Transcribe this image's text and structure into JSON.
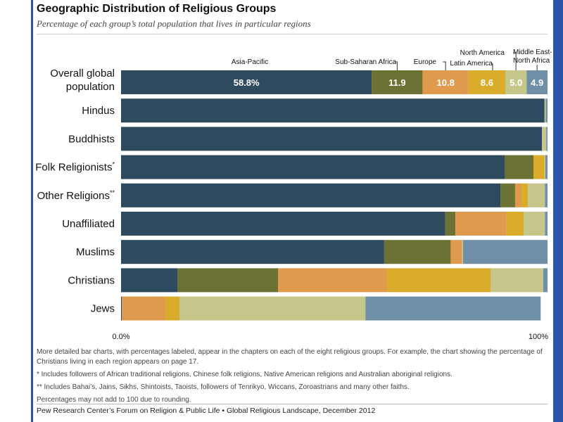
{
  "header": {
    "title": "Geographic Distribution of Religious Groups",
    "subtitle": "Percentage of each group’s total population that lives in particular regions"
  },
  "chart_data": {
    "type": "bar",
    "orientation": "horizontal",
    "stacked": true,
    "categories": [
      "Overall global population",
      "Hindus",
      "Buddhists",
      "Folk Religionists*",
      "Other Religions**",
      "Unaffiliated",
      "Muslims",
      "Christians",
      "Jews"
    ],
    "series": [
      {
        "name": "Asia-Pacific",
        "color": "#2e4a5e",
        "values": [
          58.8,
          99.3,
          98.7,
          90.0,
          89.0,
          76.0,
          61.7,
          13.2,
          0.2
        ]
      },
      {
        "name": "Sub-Saharan Africa",
        "color": "#6b7233",
        "values": [
          11.9,
          0.0,
          0.0,
          6.7,
          3.4,
          2.4,
          15.6,
          23.6,
          0.0
        ]
      },
      {
        "name": "Europe",
        "color": "#e09a4e",
        "values": [
          10.8,
          0.0,
          0.0,
          0.0,
          1.5,
          12.0,
          2.7,
          25.5,
          10.2
        ]
      },
      {
        "name": "Latin America",
        "color": "#d9ac2c",
        "values": [
          8.6,
          0.0,
          0.0,
          2.6,
          1.5,
          4.0,
          0.0,
          24.4,
          3.3
        ]
      },
      {
        "name": "North America",
        "color": "#c4c68a",
        "values": [
          5.0,
          0.3,
          1.0,
          0.2,
          4.0,
          5.0,
          0.2,
          12.3,
          43.6
        ]
      },
      {
        "name": "Middle East-North Africa",
        "color": "#6f8fa6",
        "values": [
          4.9,
          0.4,
          0.3,
          0.5,
          0.6,
          0.6,
          19.8,
          1.0,
          41.1
        ]
      }
    ],
    "top_labels": {
      "asia_pacific": "Asia-Pacific",
      "ssa": "Sub-Saharan Africa",
      "europe": "Europe",
      "latin_america": "Latin America",
      "north_america": "North America",
      "mena_line1": "Middle East-",
      "mena_line2": "North Africa"
    },
    "data_labels": [
      "58.8%",
      "11.9",
      "10.8",
      "8.6",
      "5.0",
      "4.9"
    ],
    "xlim": [
      0,
      100
    ],
    "x_ticks": [
      "0.0%",
      "100%"
    ],
    "grid": false,
    "legend": "none"
  },
  "notes": {
    "line1": "More detailed bar charts, with percentages labeled, appear in the chapters on each of the eight religious groups. For example, the chart showing the percentage of Christians living in each region appears on page 17.",
    "line2": "* Includes followers of African traditional religions, Chinese folk religions, Native American religions and Australian aboriginal religions.",
    "line3": "** Includes Bahai’s, Jains, Sikhs, Shintoists, Taoists, followers of Tenrikyo, Wiccans, Zoroastrians and many other faiths.",
    "line4": "Percentages may not add to 100 due to rounding.",
    "source": "Pew Research Center’s Forum on Religion & Public Life • Global Religious Landscape, December 2012"
  }
}
